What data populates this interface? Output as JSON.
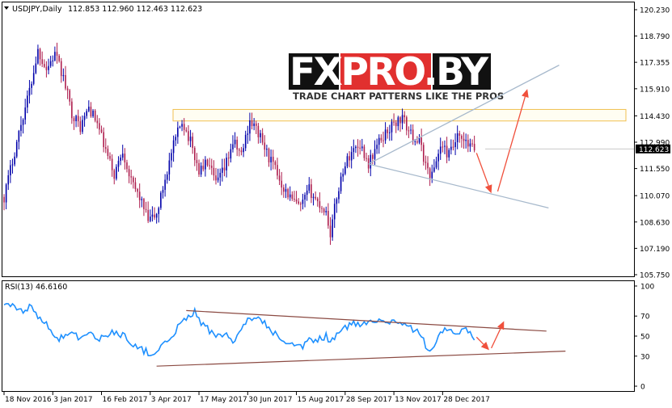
{
  "header": {
    "symbol": "USDJPY,Daily",
    "ohlc": "112.853 112.960 112.463 112.623"
  },
  "logo": {
    "brand": "FXPRO.BY",
    "tagline": "TRADE CHART PATTERNS LIKE THE PROS"
  },
  "chart_data": [
    {
      "type": "candlestick",
      "title": "USDJPY,Daily",
      "price_ticks": [
        "120.230",
        "118.790",
        "117.355",
        "115.910",
        "114.430",
        "112.990",
        "111.550",
        "110.070",
        "108.630",
        "107.190",
        "105.750"
      ],
      "price_tick_values": [
        120.23,
        118.79,
        117.355,
        115.91,
        114.43,
        112.99,
        111.55,
        110.07,
        108.63,
        107.19,
        105.75
      ],
      "ylim": [
        105.75,
        120.23
      ],
      "current_price": "112.623",
      "current_price_value": 112.623,
      "anchors": [
        [
          0,
          110.0
        ],
        [
          4,
          112.0
        ],
        [
          8,
          114.0
        ],
        [
          12,
          115.8
        ],
        [
          16,
          118.0
        ],
        [
          20,
          117.0
        ],
        [
          24,
          117.8
        ],
        [
          28,
          116.5
        ],
        [
          32,
          114.6
        ],
        [
          36,
          113.8
        ],
        [
          40,
          114.9
        ],
        [
          44,
          114.0
        ],
        [
          48,
          112.5
        ],
        [
          52,
          111.2
        ],
        [
          56,
          112.6
        ],
        [
          60,
          110.8
        ],
        [
          64,
          110.0
        ],
        [
          68,
          108.7
        ],
        [
          72,
          109.0
        ],
        [
          76,
          111.0
        ],
        [
          80,
          112.8
        ],
        [
          84,
          114.2
        ],
        [
          88,
          113.0
        ],
        [
          92,
          111.4
        ],
        [
          96,
          111.9
        ],
        [
          100,
          110.7
        ],
        [
          104,
          111.5
        ],
        [
          108,
          113.0
        ],
        [
          112,
          112.3
        ],
        [
          116,
          114.2
        ],
        [
          120,
          113.5
        ],
        [
          124,
          112.4
        ],
        [
          128,
          111.5
        ],
        [
          132,
          110.5
        ],
        [
          136,
          109.8
        ],
        [
          140,
          109.4
        ],
        [
          144,
          110.4
        ],
        [
          148,
          109.7
        ],
        [
          152,
          109.2
        ],
        [
          154,
          108.0
        ],
        [
          157,
          110.0
        ],
        [
          160,
          111.5
        ],
        [
          164,
          112.5
        ],
        [
          168,
          112.9
        ],
        [
          172,
          111.8
        ],
        [
          176,
          112.8
        ],
        [
          180,
          113.5
        ],
        [
          184,
          114.0
        ],
        [
          188,
          114.3
        ],
        [
          192,
          113.4
        ],
        [
          196,
          113.0
        ],
        [
          200,
          111.4
        ],
        [
          202,
          111.2
        ],
        [
          206,
          112.8
        ],
        [
          210,
          112.3
        ],
        [
          214,
          113.2
        ],
        [
          218,
          112.9
        ],
        [
          222,
          112.6
        ]
      ],
      "annotations": {
        "resistance_zone": [
          114.15,
          114.78
        ],
        "triangle_upper": {
          "from": [
            172,
            111.8
          ],
          "to": [
            262,
            117.2
          ]
        },
        "triangle_lower": {
          "from": [
            172,
            111.8
          ],
          "to": [
            257,
            109.4
          ]
        },
        "arrow_down": {
          "from": [
            223,
            112.4
          ],
          "to": [
            230,
            110.2
          ]
        },
        "arrow_up": {
          "from": [
            233,
            110.3
          ],
          "to": [
            247,
            115.9
          ]
        }
      }
    },
    {
      "type": "line",
      "title": "RSI(13) 46.6160",
      "rsi_ticks": [
        "100",
        "70",
        "50",
        "30",
        "0"
      ],
      "rsi_tick_values": [
        100,
        70,
        50,
        30,
        0
      ],
      "ylim": [
        0,
        100
      ],
      "anchors": [
        [
          0,
          82
        ],
        [
          4,
          79
        ],
        [
          8,
          74
        ],
        [
          12,
          80
        ],
        [
          14,
          76
        ],
        [
          16,
          70
        ],
        [
          20,
          62
        ],
        [
          24,
          47
        ],
        [
          28,
          49
        ],
        [
          32,
          55
        ],
        [
          36,
          48
        ],
        [
          40,
          53
        ],
        [
          44,
          46
        ],
        [
          48,
          51
        ],
        [
          52,
          54
        ],
        [
          56,
          51
        ],
        [
          60,
          44
        ],
        [
          64,
          37
        ],
        [
          68,
          34
        ],
        [
          72,
          33
        ],
        [
          76,
          42
        ],
        [
          80,
          53
        ],
        [
          84,
          64
        ],
        [
          88,
          72
        ],
        [
          90,
          74
        ],
        [
          92,
          66
        ],
        [
          96,
          58
        ],
        [
          100,
          48
        ],
        [
          104,
          52
        ],
        [
          108,
          44
        ],
        [
          112,
          55
        ],
        [
          116,
          68
        ],
        [
          120,
          72
        ],
        [
          124,
          60
        ],
        [
          128,
          52
        ],
        [
          132,
          42
        ],
        [
          136,
          40
        ],
        [
          140,
          38
        ],
        [
          144,
          45
        ],
        [
          148,
          46
        ],
        [
          152,
          50
        ],
        [
          154,
          44
        ],
        [
          157,
          52
        ],
        [
          160,
          56
        ],
        [
          164,
          63
        ],
        [
          168,
          60
        ],
        [
          172,
          66
        ],
        [
          176,
          67
        ],
        [
          180,
          63
        ],
        [
          184,
          66
        ],
        [
          188,
          63
        ],
        [
          192,
          58
        ],
        [
          196,
          53
        ],
        [
          200,
          37
        ],
        [
          202,
          38
        ],
        [
          206,
          52
        ],
        [
          210,
          58
        ],
        [
          214,
          52
        ],
        [
          218,
          56
        ],
        [
          222,
          47
        ]
      ],
      "annotations": {
        "upper_line": {
          "from": [
            86,
            75.5
          ],
          "to": [
            256,
            55
          ]
        },
        "lower_line": {
          "from": [
            72,
            20
          ],
          "to": [
            265,
            35
          ]
        },
        "arrow_down": {
          "from": [
            223,
            49
          ],
          "to": [
            229,
            36
          ]
        },
        "arrow_up": {
          "from": [
            230,
            38
          ],
          "to": [
            236,
            65
          ]
        }
      }
    }
  ],
  "time_axis": {
    "labels": [
      "18 Nov 2016",
      "3 Jan 2017",
      "16 Feb 2017",
      "3 Apr 2017",
      "17 May 2017",
      "30 Jun 2017",
      "15 Aug 2017",
      "28 Sep 2017",
      "13 Nov 2017",
      "28 Dec 2017"
    ],
    "label_bar_index": [
      0,
      23,
      46,
      69,
      92,
      115,
      138,
      161,
      184,
      207
    ]
  },
  "colors": {
    "bull": "#0000aa",
    "bear": "#ae1e4e",
    "rsi": "#1e90ff",
    "trend_blue": "#a7b9cc",
    "trend_brown": "#8b4a42",
    "arrow": "#f0503c",
    "zone_border": "#f0c050",
    "zone_fill": "#fffdf2",
    "logo_red": "#e1302f",
    "logo_dark": "#111111"
  }
}
